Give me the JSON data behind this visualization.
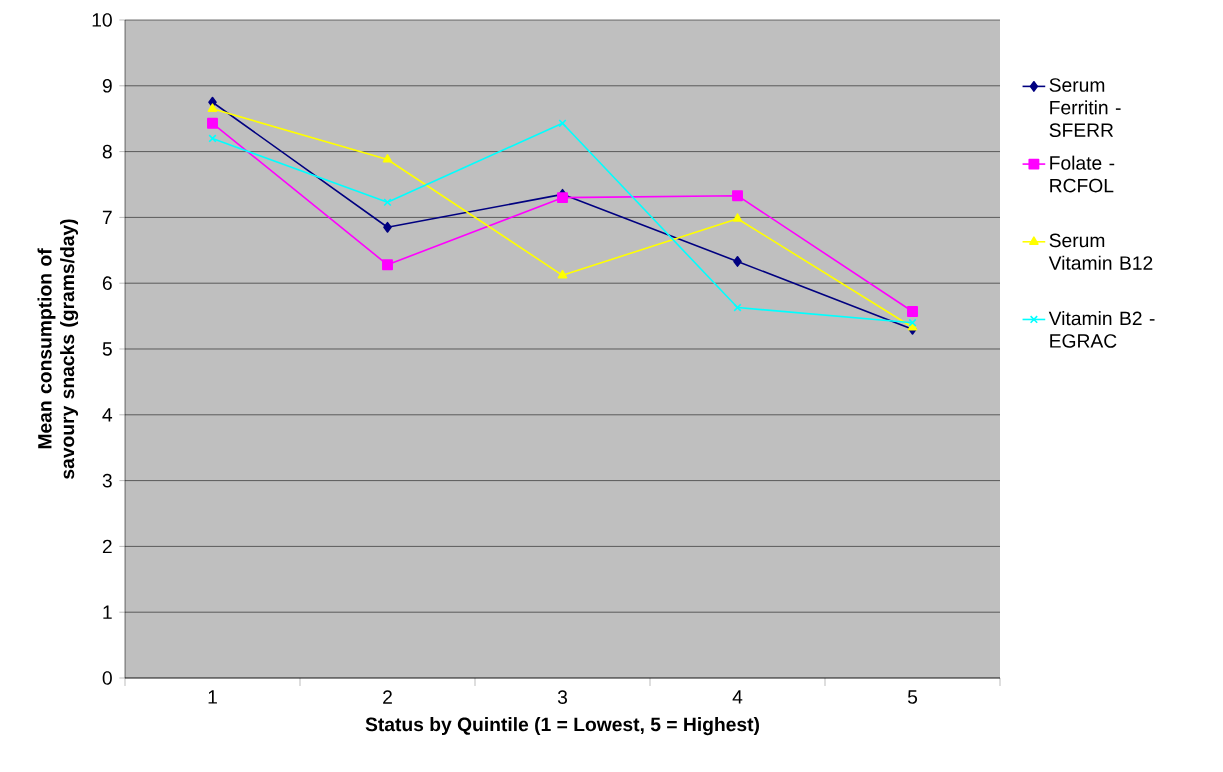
{
  "chart_data": {
    "type": "line",
    "xlabel": "Status by Quintile (1 = Lowest, 5 = Highest)",
    "ylabel": "Mean consumption of savoury snacks (grams/day)",
    "categories": [
      "1",
      "2",
      "3",
      "4",
      "5"
    ],
    "series": [
      {
        "name": "Serum Ferritin - SFERR",
        "color": "#000080",
        "marker": "diamond",
        "values": [
          8.75,
          6.85,
          7.35,
          6.33,
          5.3
        ]
      },
      {
        "name": "Folate - RCFOL",
        "color": "#ff00ff",
        "marker": "square",
        "values": [
          8.43,
          6.28,
          7.3,
          7.33,
          5.57
        ]
      },
      {
        "name": "Serum Vitamin B12",
        "color": "#ffff00",
        "marker": "triangle",
        "values": [
          8.65,
          7.88,
          6.12,
          6.98,
          5.33
        ]
      },
      {
        "name": "Vitamin B2 - EGRAC",
        "color": "#00ffff",
        "marker": "cross",
        "values": [
          8.2,
          7.23,
          8.43,
          5.63,
          5.4
        ]
      }
    ],
    "ylim": [
      0,
      10
    ],
    "yticks": [
      0,
      1,
      2,
      3,
      4,
      5,
      6,
      7,
      8,
      9,
      10
    ],
    "grid": "y",
    "legend": "right",
    "line_style": "solid"
  }
}
